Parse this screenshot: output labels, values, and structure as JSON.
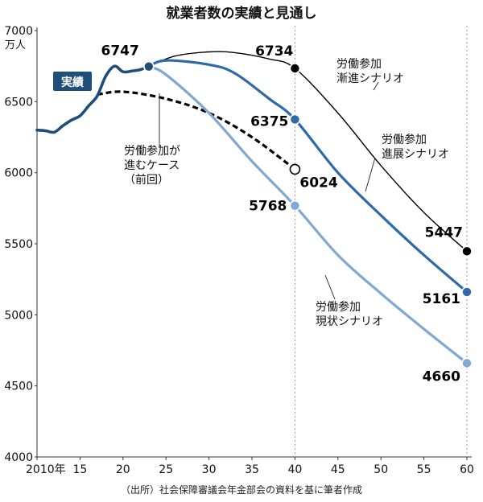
{
  "chart_data": {
    "type": "line",
    "title": "就業者数の実績と見通し",
    "ylabel": "万人",
    "xlabel": "",
    "xlim": [
      2010,
      2060
    ],
    "ylim": [
      4000,
      7000
    ],
    "yticks": [
      4000,
      4500,
      5000,
      5500,
      6000,
      6500,
      7000
    ],
    "xticks": [
      {
        "value": 2010,
        "label": "2010年"
      },
      {
        "value": 2015,
        "label": "15"
      },
      {
        "value": 2020,
        "label": "20"
      },
      {
        "value": 2025,
        "label": "25"
      },
      {
        "value": 2030,
        "label": "30"
      },
      {
        "value": 2035,
        "label": "35"
      },
      {
        "value": 2040,
        "label": "40"
      },
      {
        "value": 2045,
        "label": "45"
      },
      {
        "value": 2050,
        "label": "50"
      },
      {
        "value": 2055,
        "label": "55"
      },
      {
        "value": 2060,
        "label": "60"
      }
    ],
    "reference_lines_x": [
      2040,
      2060
    ],
    "series": [
      {
        "name": "実績",
        "color": "#1f4e79",
        "style": "solid-thick",
        "points": [
          [
            2010,
            6300
          ],
          [
            2011,
            6295
          ],
          [
            2012,
            6285
          ],
          [
            2013,
            6330
          ],
          [
            2014,
            6370
          ],
          [
            2015,
            6400
          ],
          [
            2016,
            6470
          ],
          [
            2017,
            6540
          ],
          [
            2018,
            6680
          ],
          [
            2019,
            6750
          ],
          [
            2020,
            6710
          ],
          [
            2021,
            6715
          ],
          [
            2022,
            6725
          ],
          [
            2023,
            6747
          ]
        ]
      },
      {
        "name": "労働参加が進むケース（前回）",
        "color": "#000000",
        "style": "dashed",
        "points": [
          [
            2017,
            6550
          ],
          [
            2020,
            6570
          ],
          [
            2025,
            6520
          ],
          [
            2030,
            6420
          ],
          [
            2035,
            6250
          ],
          [
            2040,
            6024
          ]
        ]
      },
      {
        "name": "労働参加漸進シナリオ",
        "color": "#000000",
        "style": "solid-thin",
        "points": [
          [
            2023,
            6747
          ],
          [
            2026,
            6820
          ],
          [
            2030,
            6850
          ],
          [
            2033,
            6845
          ],
          [
            2037,
            6800
          ],
          [
            2040,
            6734
          ],
          [
            2045,
            6420
          ],
          [
            2050,
            6050
          ],
          [
            2055,
            5720
          ],
          [
            2060,
            5447
          ]
        ]
      },
      {
        "name": "労働参加進展シナリオ",
        "color": "#2e6aa8",
        "style": "solid",
        "points": [
          [
            2023,
            6747
          ],
          [
            2025,
            6790
          ],
          [
            2030,
            6760
          ],
          [
            2033,
            6700
          ],
          [
            2037,
            6520
          ],
          [
            2040,
            6375
          ],
          [
            2045,
            6000
          ],
          [
            2050,
            5700
          ],
          [
            2055,
            5420
          ],
          [
            2060,
            5161
          ]
        ]
      },
      {
        "name": "労働参加現状シナリオ",
        "color": "#7fa8d3",
        "style": "solid",
        "points": [
          [
            2023,
            6747
          ],
          [
            2025,
            6690
          ],
          [
            2030,
            6420
          ],
          [
            2035,
            6080
          ],
          [
            2040,
            5768
          ],
          [
            2045,
            5420
          ],
          [
            2050,
            5150
          ],
          [
            2055,
            4900
          ],
          [
            2060,
            4660
          ]
        ]
      }
    ],
    "markers": [
      {
        "x": 2023,
        "y": 6747,
        "fill": "#1f4e79",
        "stroke": "#ffffff"
      },
      {
        "x": 2040,
        "y": 6734,
        "fill": "#000000",
        "stroke": "#ffffff"
      },
      {
        "x": 2040,
        "y": 6375,
        "fill": "#2e6aa8",
        "stroke": "#ffffff"
      },
      {
        "x": 2040,
        "y": 6024,
        "fill": "#ffffff",
        "stroke": "#000000"
      },
      {
        "x": 2040,
        "y": 5768,
        "fill": "#7fa8d3",
        "stroke": "#ffffff"
      },
      {
        "x": 2060,
        "y": 5447,
        "fill": "#000000",
        "stroke": "#ffffff"
      },
      {
        "x": 2060,
        "y": 5161,
        "fill": "#2e6aa8",
        "stroke": "#ffffff"
      },
      {
        "x": 2060,
        "y": 4660,
        "fill": "#7fa8d3",
        "stroke": "#ffffff"
      }
    ],
    "data_labels": [
      {
        "text": "6747",
        "x": 2023,
        "y": 6747
      },
      {
        "text": "6734",
        "x": 2040,
        "y": 6734
      },
      {
        "text": "6375",
        "x": 2040,
        "y": 6375
      },
      {
        "text": "6024",
        "x": 2040,
        "y": 6024
      },
      {
        "text": "5768",
        "x": 2040,
        "y": 5768
      },
      {
        "text": "5447",
        "x": 2060,
        "y": 5447
      },
      {
        "text": "5161",
        "x": 2060,
        "y": 5161
      },
      {
        "text": "4660",
        "x": 2060,
        "y": 4660
      }
    ],
    "series_labels": [
      {
        "lines": [
          "労働参加",
          "漸進シナリオ"
        ],
        "series": "労働参加漸進シナリオ"
      },
      {
        "lines": [
          "労働参加",
          "進展シナリオ"
        ],
        "series": "労働参加進展シナリオ"
      },
      {
        "lines": [
          "労働参加が",
          "進むケース",
          "（前回）"
        ],
        "series": "労働参加が進むケース（前回）"
      },
      {
        "lines": [
          "労働参加",
          "現状シナリオ"
        ],
        "series": "労働参加現状シナリオ"
      }
    ],
    "badge": {
      "text": "実績",
      "color": "#1f4e79"
    },
    "source": "（出所）社会保障審議会年金部会の資料を基に筆者作成"
  }
}
